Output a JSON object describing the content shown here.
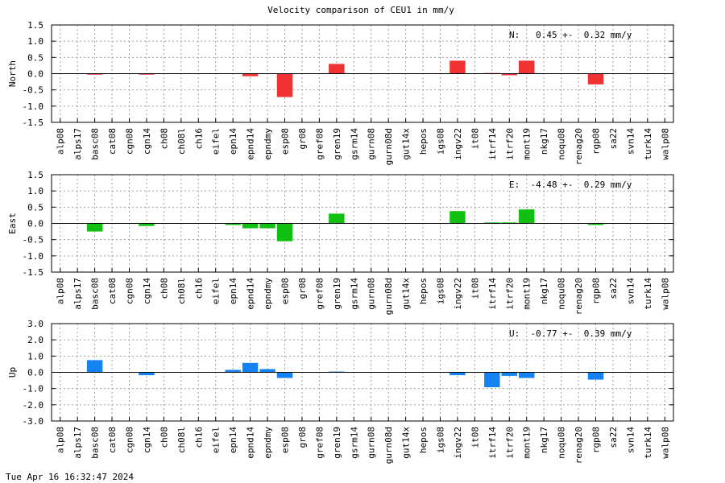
{
  "title": "Velocity comparison of CEU1 in mm/y",
  "timestamp": "Tue Apr 16 16:32:47 2024",
  "chart_data": {
    "type": "bar",
    "title": "Velocity comparison of CEU1 in mm/y",
    "grid": true,
    "categories": [
      "alp08",
      "alps17",
      "basc08",
      "cat08",
      "cgn08",
      "cgn14",
      "ch08",
      "ch08l",
      "ch16",
      "eifel",
      "epn14",
      "epnd14",
      "epndmy",
      "esp08",
      "gr08",
      "gref08",
      "gren19",
      "gsrm14",
      "gurn08",
      "gurn08d",
      "gut14x",
      "hepos",
      "igs08",
      "ingv22",
      "it08",
      "itrf14",
      "itrf20",
      "mont19",
      "nkg17",
      "noqu08",
      "renag20",
      "rgp08",
      "sa22",
      "svn14",
      "turk14",
      "walp08"
    ],
    "panels": [
      {
        "ylabel": "North",
        "ylim": [
          -1.5,
          1.5
        ],
        "yticks": [
          "1.5",
          "1.0",
          "0.5",
          "0.0",
          "-0.5",
          "-1.0",
          "-1.5"
        ],
        "color": "#f03232",
        "stat": "N:   0.45 +-  0.32 mm/y",
        "values": [
          null,
          null,
          -0.03,
          null,
          null,
          -0.03,
          null,
          null,
          null,
          null,
          null,
          -0.08,
          null,
          -0.72,
          null,
          null,
          0.3,
          null,
          null,
          null,
          null,
          null,
          null,
          0.4,
          null,
          0.02,
          -0.05,
          0.4,
          null,
          null,
          null,
          -0.33,
          null,
          null,
          null,
          null
        ]
      },
      {
        "ylabel": "East",
        "ylim": [
          -1.5,
          1.5
        ],
        "yticks": [
          "1.5",
          "1.0",
          "0.5",
          "0.0",
          "-0.5",
          "-1.0",
          "-1.5"
        ],
        "color": "#12c012",
        "stat": "E:  -4.48 +-  0.29 mm/y",
        "values": [
          null,
          null,
          -0.25,
          null,
          null,
          -0.08,
          null,
          null,
          null,
          null,
          -0.05,
          -0.15,
          -0.15,
          -0.55,
          null,
          null,
          0.3,
          null,
          null,
          null,
          null,
          null,
          null,
          0.38,
          null,
          0.03,
          0.03,
          0.43,
          null,
          null,
          null,
          -0.05,
          null,
          null,
          null,
          null
        ]
      },
      {
        "ylabel": "Up",
        "ylim": [
          -3.0,
          3.0
        ],
        "yticks": [
          "3.0",
          "2.0",
          "1.0",
          "0.0",
          "-1.0",
          "-2.0",
          "-3.0"
        ],
        "color": "#1482f0",
        "stat": "U:  -0.77 +-  0.39 mm/y",
        "values": [
          null,
          null,
          0.75,
          null,
          null,
          -0.18,
          null,
          null,
          null,
          null,
          0.15,
          0.58,
          0.2,
          -0.35,
          null,
          null,
          0.05,
          null,
          null,
          null,
          null,
          null,
          null,
          -0.18,
          null,
          -0.92,
          -0.22,
          -0.35,
          null,
          null,
          null,
          -0.45,
          null,
          null,
          null,
          null
        ]
      }
    ]
  }
}
